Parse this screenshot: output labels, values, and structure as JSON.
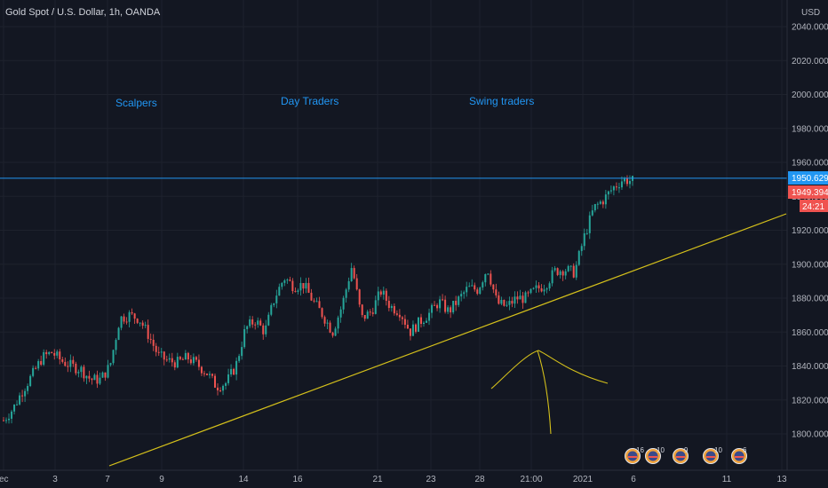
{
  "chart_data": {
    "type": "candlestick",
    "title": "Gold Spot / U.S. Dollar, 1h, OANDA",
    "currency": "USD",
    "x_ticks": [
      "ec",
      "3",
      "7",
      "9",
      "14",
      "16",
      "21",
      "23",
      "28",
      "21:00",
      "2021",
      "6",
      "11",
      "13"
    ],
    "y_ticks": [
      2040,
      2020,
      2000,
      1980,
      1960,
      1940,
      1920,
      1900,
      1880,
      1860,
      1840,
      1820,
      1800
    ],
    "y_tick_labels": [
      "2040.000",
      "2020.000",
      "2000.000",
      "1980.000",
      "1960.000",
      "1940.000",
      "1920.000",
      "1900.000",
      "1880.000",
      "1860.000",
      "1840.000",
      "1820.000",
      "1800.000"
    ],
    "ylim": [
      1783,
      2054
    ],
    "horizontal_line": {
      "price": 1950.629,
      "label": "1950.629",
      "color": "#2196f3"
    },
    "last_price": {
      "price": 1949.394,
      "label": "1949.394",
      "countdown": "24:21",
      "color": "#ef5350"
    },
    "annotations": [
      {
        "text": "Scalpers",
        "color": "#2196f3"
      },
      {
        "text": "Day Traders",
        "color": "#2196f3"
      },
      {
        "text": "Swing traders",
        "color": "#2196f3"
      }
    ],
    "trendline": {
      "color": "#d4c01b"
    },
    "price_path": [
      1808,
      1815,
      1826,
      1835,
      1845,
      1848,
      1843,
      1840,
      1838,
      1832,
      1832,
      1840,
      1868,
      1870,
      1868,
      1858,
      1846,
      1843,
      1842,
      1845,
      1841,
      1836,
      1828,
      1830,
      1840,
      1862,
      1867,
      1860,
      1880,
      1892,
      1887,
      1888,
      1878,
      1870,
      1860,
      1876,
      1899,
      1868,
      1872,
      1884,
      1875,
      1872,
      1860,
      1866,
      1871,
      1878,
      1872,
      1879,
      1886,
      1885,
      1898,
      1877,
      1875,
      1880,
      1880,
      1885,
      1888,
      1896,
      1897,
      1895,
      1916,
      1933,
      1938,
      1945,
      1950,
      1949
    ],
    "event_badges": [
      "16",
      "10",
      "9",
      "10",
      "6"
    ],
    "colors": {
      "up": "#26a69a",
      "down": "#ef5350",
      "background": "#131722",
      "grid": "#1e222d",
      "axis_text": "#b2b5be"
    }
  }
}
